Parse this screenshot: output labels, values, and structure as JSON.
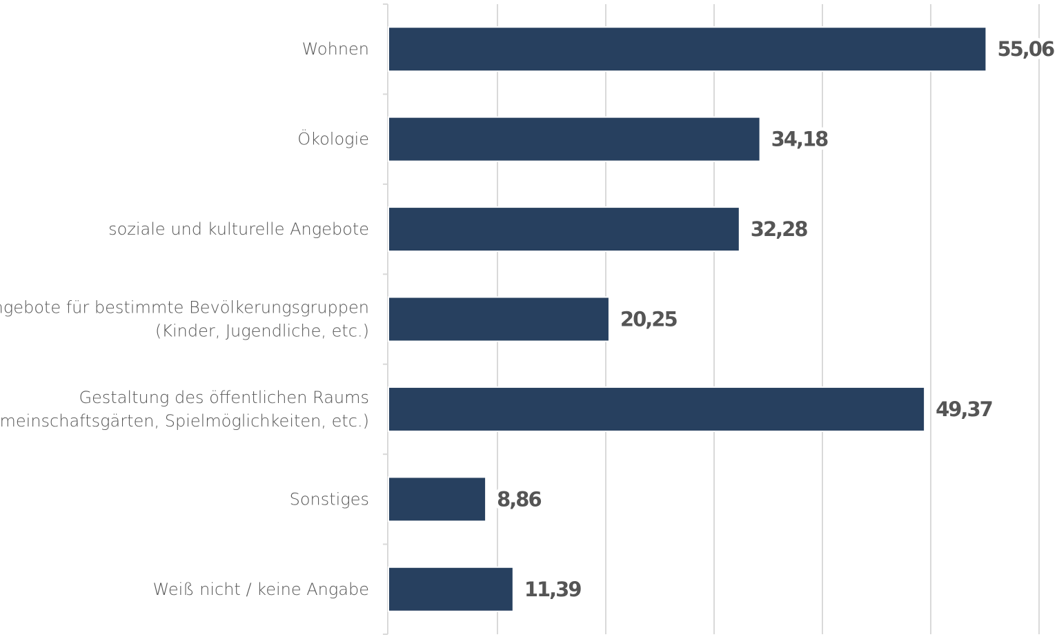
{
  "chart_data": {
    "type": "bar",
    "orientation": "horizontal",
    "categories": [
      [
        "Wohnen"
      ],
      [
        "Ökologie"
      ],
      [
        "soziale und kulturelle Angebote"
      ],
      [
        "Angebote für bestimmte Bevölkerungsgruppen",
        "(Kinder, Jugendliche, etc.)"
      ],
      [
        "Gestaltung des öffentlichen Raums",
        "(Gemeinschaftsgärten, Spielmöglichkeiten, etc.)"
      ],
      [
        "Sonstiges"
      ],
      [
        "Weiß nicht / keine Angabe"
      ]
    ],
    "values": [
      55.06,
      34.18,
      32.28,
      20.25,
      49.37,
      8.86,
      11.39
    ],
    "value_labels": [
      "55,06",
      "34,18",
      "32,28",
      "20,25",
      "49,37",
      "8,86",
      "11,39"
    ],
    "xlim": [
      0,
      60
    ],
    "grid": true,
    "bar_color": "#27405F",
    "label_color": "#555555",
    "grid_color": "#D9D9D9"
  }
}
